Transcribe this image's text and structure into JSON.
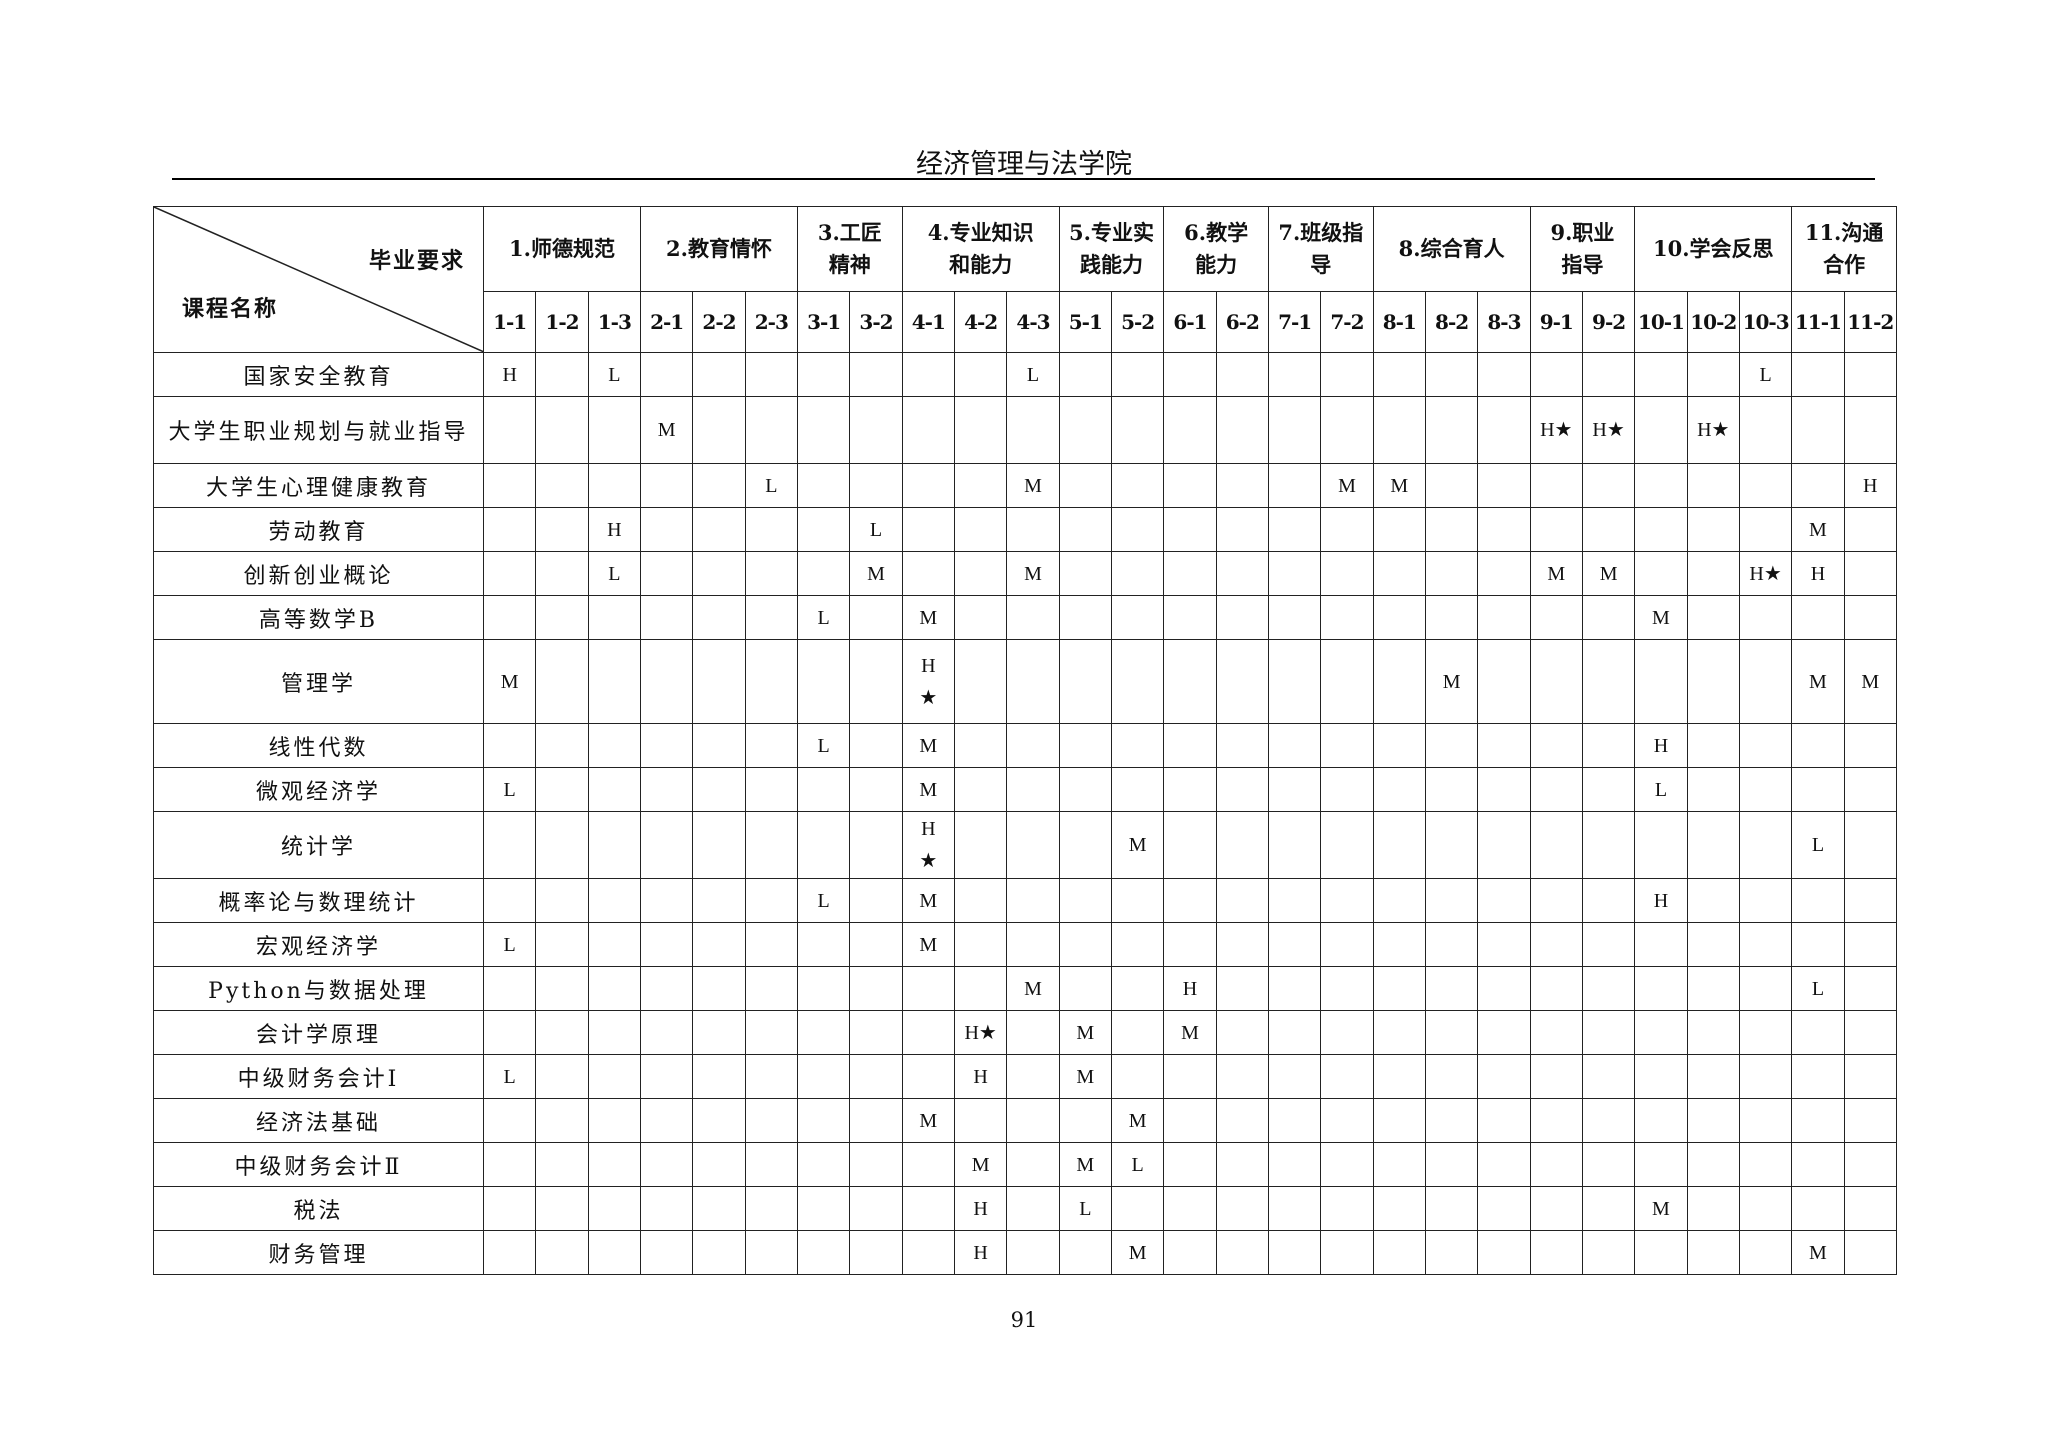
{
  "title": "经济管理与法学院",
  "corner": {
    "top": "毕业要求",
    "bottom": "课程名称"
  },
  "groups": [
    {
      "label": "1.师德规范",
      "span": 3
    },
    {
      "label": "2.教育情怀",
      "span": 3
    },
    {
      "label": "3.工匠\n精神",
      "span": 2
    },
    {
      "label": "4.专业知识\n和能力",
      "span": 3
    },
    {
      "label": "5.专业实\n践能力",
      "span": 2
    },
    {
      "label": "6.教学\n能力",
      "span": 2
    },
    {
      "label": "7.班级指\n导",
      "span": 2
    },
    {
      "label": "8.综合育人",
      "span": 3
    },
    {
      "label": "9.职业\n指导",
      "span": 2
    },
    {
      "label": "10.学会反思",
      "span": 3
    },
    {
      "label": "11.沟通\n合作",
      "span": 2
    }
  ],
  "columns": [
    "1-1",
    "1-2",
    "1-3",
    "2-1",
    "2-2",
    "2-3",
    "3-1",
    "3-2",
    "4-1",
    "4-2",
    "4-3",
    "5-1",
    "5-2",
    "6-1",
    "6-2",
    "7-1",
    "7-2",
    "8-1",
    "8-2",
    "8-3",
    "9-1",
    "9-2",
    "10-1",
    "10-2",
    "10-3",
    "11-1",
    "11-2"
  ],
  "rows": [
    {
      "course": "国家安全教育",
      "marks": {
        "1-1": "H",
        "1-3": "L",
        "4-3": "L",
        "10-3": "L"
      }
    },
    {
      "course": "大学生职业规划与就业指导",
      "tall": 1,
      "marks": {
        "2-1": "M",
        "9-1": "H★",
        "9-2": "H★",
        "10-2": "H★"
      }
    },
    {
      "course": "大学生心理健康教育",
      "marks": {
        "2-3": "L",
        "4-3": "M",
        "7-2": "M",
        "8-1": "M",
        "11-2": "H"
      }
    },
    {
      "course": "劳动教育",
      "marks": {
        "1-3": "H",
        "3-2": "L",
        "11-1": "M"
      }
    },
    {
      "course": "创新创业概论",
      "marks": {
        "1-3": "L",
        "3-2": "M",
        "4-3": "M",
        "9-1": "M",
        "9-2": "M",
        "10-3": "H★",
        "11-1": "H"
      }
    },
    {
      "course": "高等数学B",
      "marks": {
        "3-1": "L",
        "4-1": "M",
        "10-1": "M"
      }
    },
    {
      "course": "管理学",
      "tall": 2,
      "marks": {
        "1-1": "M",
        "4-1": "H\n★",
        "8-2": "M",
        "11-1": "M",
        "11-2": "M"
      }
    },
    {
      "course": "线性代数",
      "marks": {
        "3-1": "L",
        "4-1": "M",
        "10-1": "H"
      }
    },
    {
      "course": "微观经济学",
      "marks": {
        "1-1": "L",
        "4-1": "M",
        "10-1": "L"
      }
    },
    {
      "course": "统计学",
      "tall": 1,
      "marks": {
        "4-1": "H\n★",
        "5-2": "M",
        "11-1": "L"
      }
    },
    {
      "course": "概率论与数理统计",
      "marks": {
        "3-1": "L",
        "4-1": "M",
        "10-1": "H"
      }
    },
    {
      "course": "宏观经济学",
      "marks": {
        "1-1": "L",
        "4-1": "M"
      }
    },
    {
      "course": "Python与数据处理",
      "marks": {
        "4-3": "M",
        "6-1": "H",
        "11-1": "L"
      }
    },
    {
      "course": "会计学原理",
      "marks": {
        "4-2": "H★",
        "5-1": "M",
        "6-1": "M"
      }
    },
    {
      "course": "中级财务会计Ⅰ",
      "marks": {
        "1-1": "L",
        "4-2": "H",
        "5-1": "M"
      }
    },
    {
      "course": "经济法基础",
      "marks": {
        "4-1": "M",
        "5-2": "M"
      }
    },
    {
      "course": "中级财务会计Ⅱ",
      "marks": {
        "4-2": "M",
        "5-1": "M",
        "5-2": "L"
      }
    },
    {
      "course": "税法",
      "marks": {
        "4-2": "H",
        "5-1": "L",
        "10-1": "M"
      }
    },
    {
      "course": "财务管理",
      "marks": {
        "4-2": "H",
        "5-2": "M",
        "11-1": "M"
      }
    }
  ],
  "page_number": "91"
}
